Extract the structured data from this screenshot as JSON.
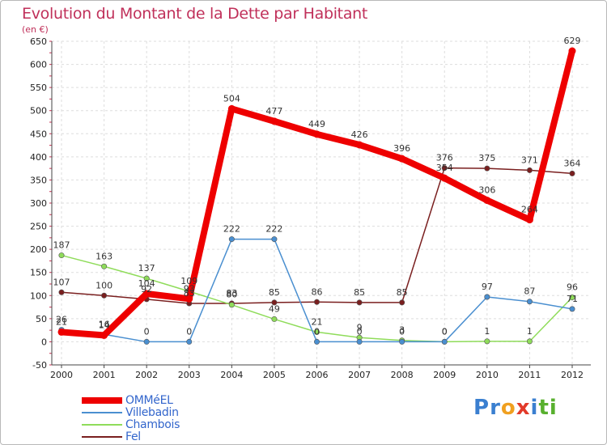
{
  "title": "Evolution du Montant de la Dette par Habitant",
  "unit_label": "(en €)",
  "logo": {
    "letters": [
      {
        "ch": "P",
        "color": "#3a7fd0"
      },
      {
        "ch": "r",
        "color": "#3a7fd0"
      },
      {
        "ch": "o",
        "color": "#f0a020"
      },
      {
        "ch": "x",
        "color": "#e23a2a"
      },
      {
        "ch": "i",
        "color": "#3a7fd0"
      },
      {
        "ch": "t",
        "color": "#58b02e"
      },
      {
        "ch": "i",
        "color": "#58b02e"
      }
    ]
  },
  "chart_data": {
    "type": "line",
    "x": [
      "2000",
      "2001",
      "2002",
      "2003",
      "2004",
      "2005",
      "2006",
      "2007",
      "2008",
      "2009",
      "2010",
      "2011",
      "2012"
    ],
    "ylim": [
      -50,
      650
    ],
    "yticks": [
      -50,
      0,
      50,
      100,
      150,
      200,
      250,
      300,
      350,
      400,
      450,
      500,
      550,
      600,
      650
    ],
    "grid": true,
    "legend_position": "bottom-left",
    "series": [
      {
        "name": "Fel",
        "color": "#7a1f1f",
        "values": [
          107,
          100,
          92,
          83,
          83,
          85,
          86,
          85,
          85,
          376,
          375,
          371,
          364
        ],
        "labels": [
          "107",
          "100",
          "92",
          "83",
          "83",
          "85",
          "86",
          "85",
          "85",
          "376",
          "375",
          "371",
          "364"
        ]
      },
      {
        "name": "Chambois",
        "color": "#8fdc5a",
        "values": [
          187,
          163,
          137,
          109,
          80,
          49,
          21,
          9,
          3,
          0,
          1,
          1,
          96
        ],
        "labels": [
          "187",
          "163",
          "137",
          "109",
          "80",
          "49",
          "21",
          "9",
          "3",
          "0",
          "1",
          "1",
          "96"
        ]
      },
      {
        "name": "Villebadin",
        "color": "#4a8fd0",
        "values": [
          26,
          16,
          0,
          0,
          222,
          222,
          0,
          0,
          0,
          0,
          97,
          87,
          71
        ],
        "labels": [
          "26",
          "16",
          "0",
          "0",
          "222",
          "222",
          "0",
          "0",
          "0",
          "0",
          "97",
          "87",
          "71"
        ]
      },
      {
        "name": "OMMéEL",
        "color": "#ee0000",
        "values": [
          21,
          14,
          104,
          93,
          504,
          477,
          449,
          426,
          396,
          354,
          306,
          264,
          629
        ],
        "labels": [
          "21",
          "14",
          "104",
          "93",
          "504",
          "477",
          "449",
          "426",
          "396",
          "354",
          "306",
          "264",
          "629"
        ]
      }
    ],
    "legend_order": [
      "OMMéEL",
      "Villebadin",
      "Chambois",
      "Fel"
    ]
  }
}
